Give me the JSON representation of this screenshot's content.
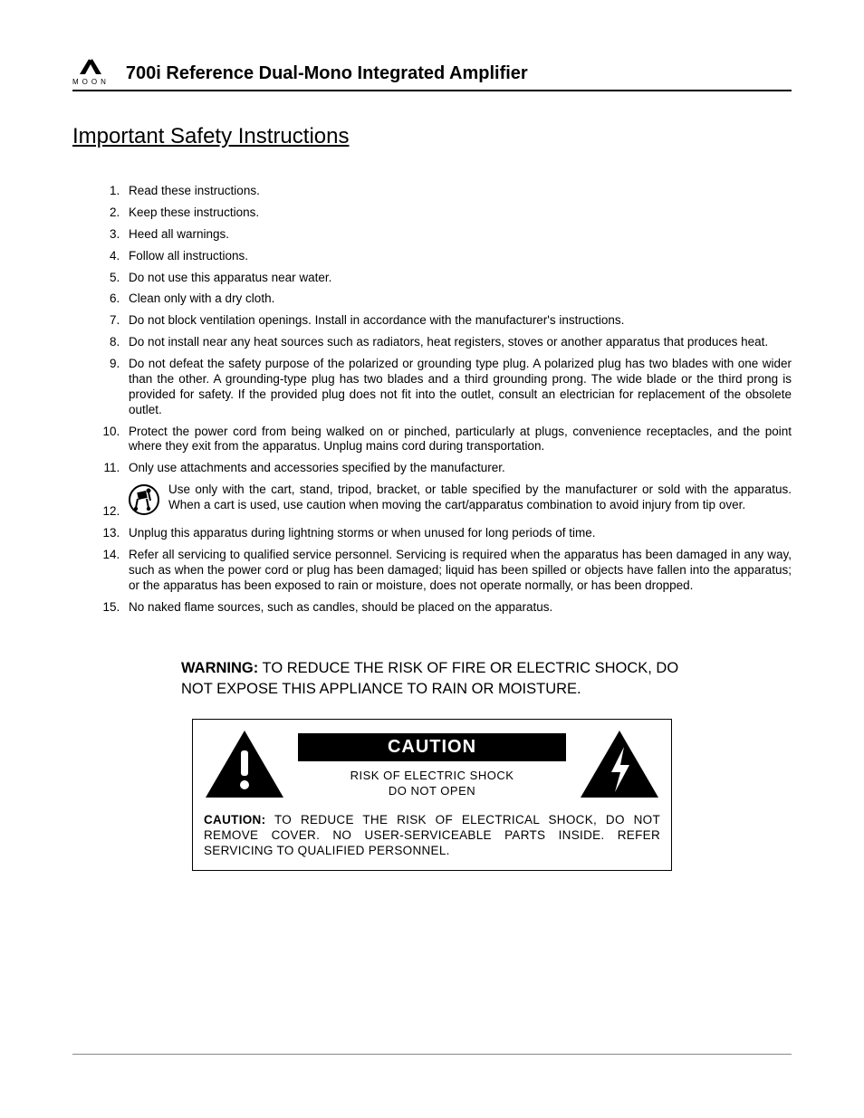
{
  "header": {
    "brand_letters": "MOON",
    "doc_title": "700i Reference Dual-Mono Integrated Amplifier"
  },
  "section_title": "Important Safety Instructions",
  "instructions": [
    "Read these instructions.",
    "Keep these instructions.",
    "Heed all warnings.",
    "Follow all instructions.",
    "Do not use this apparatus near water.",
    "Clean only with a dry cloth.",
    "Do not block ventilation openings. Install in accordance with the manufacturer's instructions.",
    "Do not install near any heat sources such as radiators, heat registers, stoves or another apparatus that produces heat.",
    "Do not defeat the safety purpose of the polarized or grounding type plug. A polarized plug has two blades with one wider than the other. A grounding-type plug has two blades and a third grounding prong. The wide blade or the third prong is provided for safety. If the provided plug does not fit into the outlet, consult an electrician for replacement of the obsolete outlet.",
    "Protect the power cord from being walked on or pinched, particularly at plugs, convenience receptacles, and the point where they exit from the apparatus. Unplug mains cord during transportation.",
    "Only use attachments and accessories specified by the manufacturer.",
    "Use only with the cart, stand, tripod, bracket, or table specified by the manufacturer or sold with the apparatus. When a cart is used, use caution when moving the cart/apparatus combination to avoid injury from tip over.",
    "Unplug this apparatus during lightning storms or when unused for long periods of time.",
    "Refer all servicing to qualified service personnel. Servicing is required when the apparatus has been damaged in any way, such as when the power cord or plug has been damaged; liquid has been spilled or objects have fallen into the apparatus; or the apparatus has been exposed to rain or moisture, does not operate normally, or has been dropped.",
    "No naked flame sources, such as candles, should be placed on the apparatus."
  ],
  "cart_icon_index": 11,
  "warning": {
    "label": "WARNING:",
    "text": "TO REDUCE THE RISK OF FIRE OR ELECTRIC SHOCK, DO NOT EXPOSE THIS APPLIANCE TO RAIN OR MOISTURE."
  },
  "caution": {
    "badge": "CAUTION",
    "sub_line1": "RISK OF ELECTRIC SHOCK",
    "sub_line2": "DO NOT OPEN",
    "bottom_label": "CAUTION:",
    "bottom_text": "TO REDUCE THE RISK OF ELECTRICAL SHOCK, DO NOT REMOVE COVER. NO USER-SERVICEABLE PARTS INSIDE. REFER SERVICING TO QUALIFIED PERSONNEL."
  },
  "colors": {
    "text": "#000000",
    "background": "#ffffff",
    "rule": "#888888"
  }
}
